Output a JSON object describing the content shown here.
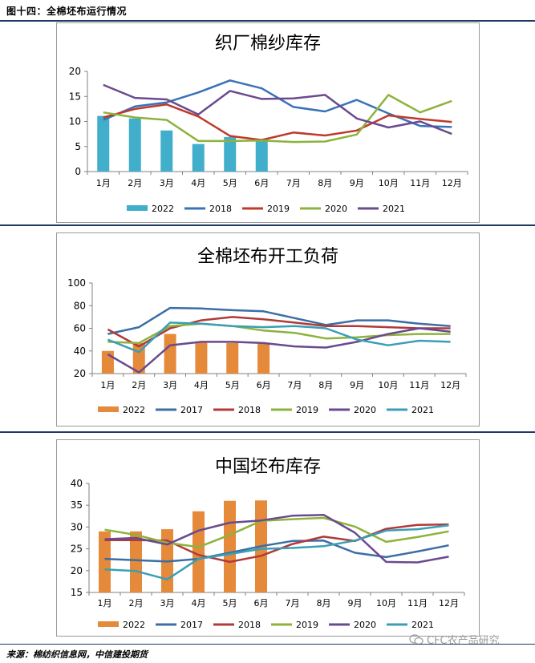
{
  "header": {
    "title": "图十四：全棉坯布运行情况"
  },
  "source": "来源：棉纺织信息网，中信建投期货",
  "watermark": "CFC农产品研究",
  "months": [
    "1月",
    "2月",
    "3月",
    "4月",
    "5月",
    "6月",
    "7月",
    "8月",
    "9月",
    "10月",
    "11月",
    "12月"
  ],
  "colors": {
    "c2017": "#3a6ea5",
    "c2018": "#c0392b",
    "c2019": "#8db33c",
    "c2020": "#6a4a8f",
    "c2021": "#3a9fb5",
    "c2018b": "#3a72b8"
  },
  "chart_data": [
    {
      "type": "bar+line",
      "title": "织厂棉纱库存",
      "categories": [
        "1月",
        "2月",
        "3月",
        "4月",
        "5月",
        "6月",
        "7月",
        "8月",
        "9月",
        "10月",
        "11月",
        "12月"
      ],
      "ylim": [
        0,
        20
      ],
      "yticks": [
        "0",
        "5",
        "10",
        "15",
        "20"
      ],
      "grid": false,
      "legend_position": "bottom",
      "bar": {
        "name": "2022",
        "color": "#41aecb",
        "values": [
          11.1,
          10.6,
          8.2,
          5.5,
          6.9,
          6.5
        ]
      },
      "series": [
        {
          "name": "2018",
          "color": "#3a72b8",
          "values": [
            10.3,
            13.0,
            13.8,
            15.8,
            18.2,
            16.6,
            12.9,
            12.0,
            14.3,
            11.6,
            9.1,
            8.9
          ]
        },
        {
          "name": "2019",
          "color": "#c0392b",
          "values": [
            10.8,
            12.5,
            13.4,
            11.0,
            7.1,
            6.3,
            7.8,
            7.2,
            8.2,
            11.2,
            10.5,
            9.9
          ]
        },
        {
          "name": "2020",
          "color": "#8db33c",
          "values": [
            11.8,
            10.8,
            10.3,
            6.1,
            6.1,
            6.2,
            5.9,
            6.0,
            7.4,
            15.3,
            11.8,
            14.1
          ]
        },
        {
          "name": "2021",
          "color": "#6a4a8f",
          "values": [
            17.3,
            14.7,
            14.4,
            11.4,
            16.1,
            14.5,
            14.6,
            15.3,
            10.6,
            8.8,
            10.0,
            7.5
          ]
        }
      ]
    },
    {
      "type": "bar+line",
      "title": "全棉坯布开工负荷",
      "categories": [
        "1月",
        "2月",
        "3月",
        "4月",
        "5月",
        "6月",
        "7月",
        "8月",
        "9月",
        "10月",
        "11月",
        "12月"
      ],
      "ylim": [
        20,
        100
      ],
      "yticks": [
        "20",
        "40",
        "60",
        "80",
        "100"
      ],
      "grid": false,
      "legend_position": "bottom",
      "bar": {
        "name": "2022",
        "color": "#e5893a",
        "values": [
          40,
          47,
          55,
          48,
          47,
          47
        ]
      },
      "series": [
        {
          "name": "2017",
          "color": "#3a6ea5",
          "values": [
            55,
            61,
            78,
            77.5,
            76,
            75,
            69,
            63,
            67,
            67,
            64,
            62
          ]
        },
        {
          "name": "2018",
          "color": "#b03a3a",
          "values": [
            59,
            44,
            60,
            67,
            70,
            68,
            65,
            62,
            62,
            61,
            60,
            60
          ]
        },
        {
          "name": "2019",
          "color": "#8db33c",
          "values": [
            48,
            47,
            62,
            64,
            62,
            58,
            56,
            51,
            52,
            54,
            55,
            55
          ]
        },
        {
          "name": "2020",
          "color": "#6a4a8f",
          "values": [
            37,
            21,
            45,
            48,
            48,
            47,
            44,
            43,
            48,
            55,
            60,
            57
          ]
        },
        {
          "name": "2021",
          "color": "#3a9fb5",
          "values": [
            50,
            39,
            65,
            64,
            62,
            61,
            62,
            60,
            50,
            45,
            49,
            48
          ]
        }
      ]
    },
    {
      "type": "bar+line",
      "title": "中国坯布库存",
      "categories": [
        "1月",
        "2月",
        "3月",
        "4月",
        "5月",
        "6月",
        "7月",
        "8月",
        "9月",
        "10月",
        "11月",
        "12月"
      ],
      "ylim": [
        15,
        40
      ],
      "yticks": [
        "15",
        "20",
        "25",
        "30",
        "35",
        "40"
      ],
      "grid": false,
      "legend_position": "bottom",
      "bar": {
        "name": "2022",
        "color": "#e5893a",
        "values": [
          29.0,
          29.0,
          29.5,
          33.6,
          36.0,
          36.1
        ]
      },
      "series": [
        {
          "name": "2017",
          "color": "#3a6ea5",
          "values": [
            22.7,
            22.4,
            22.1,
            22.7,
            24.1,
            25.6,
            26.8,
            26.9,
            24.1,
            23.1,
            24.4,
            25.8
          ]
        },
        {
          "name": "2018",
          "color": "#b03a3a",
          "values": [
            27.0,
            27.0,
            26.9,
            23.6,
            22.0,
            23.4,
            26.1,
            27.8,
            26.8,
            29.6,
            30.5,
            30.6
          ]
        },
        {
          "name": "2019",
          "color": "#8db33c",
          "values": [
            29.4,
            28.2,
            26.4,
            25.4,
            28.2,
            31.4,
            31.8,
            32.1,
            30.1,
            26.6,
            27.7,
            29.0
          ]
        },
        {
          "name": "2020",
          "color": "#6a4a8f",
          "values": [
            27.2,
            27.5,
            26.0,
            29.2,
            31.0,
            31.5,
            32.6,
            32.8,
            28.7,
            22.0,
            21.9,
            23.2
          ]
        },
        {
          "name": "2021",
          "color": "#3a9fb5",
          "values": [
            20.3,
            19.9,
            18.0,
            22.7,
            23.8,
            25.0,
            25.2,
            25.6,
            26.9,
            29.2,
            29.5,
            30.4
          ]
        }
      ]
    }
  ]
}
